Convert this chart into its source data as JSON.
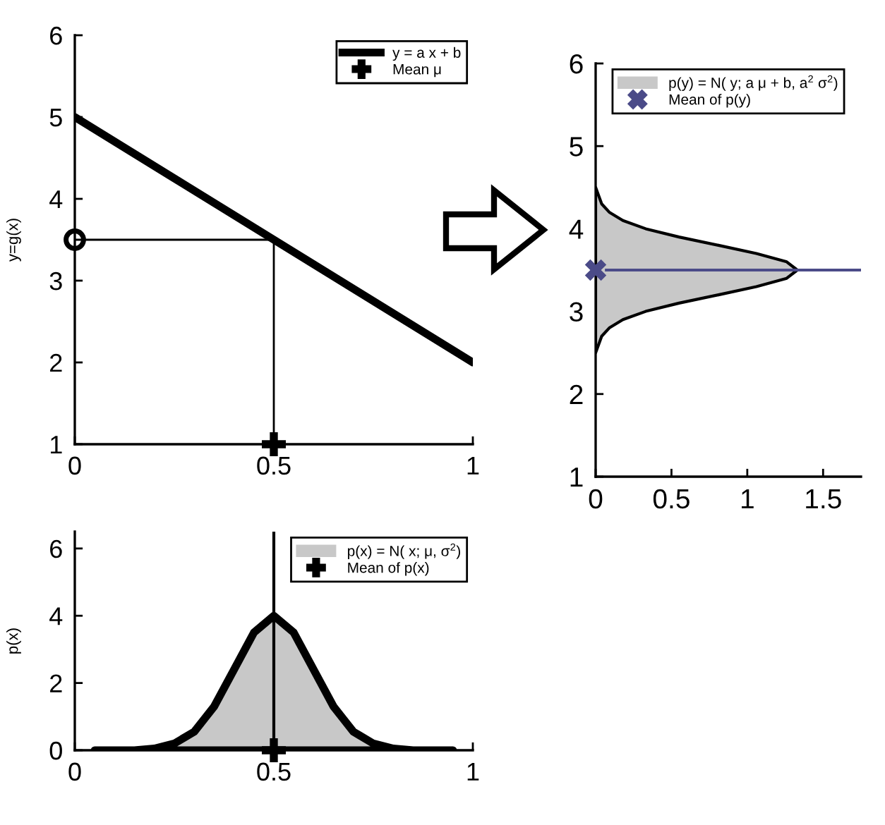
{
  "chart_data": [
    {
      "type": "line",
      "ylabel": "y=g(x)",
      "xlim": [
        0,
        1
      ],
      "ylim": [
        1,
        6
      ],
      "xticks": [
        0,
        0.5,
        1
      ],
      "yticks": [
        1,
        2,
        3,
        4,
        5,
        6
      ],
      "grid": false,
      "legend": "top right",
      "series": [
        {
          "name": "y = a x + b",
          "color": "#000000",
          "x": [
            0,
            1
          ],
          "values": [
            5,
            2
          ]
        },
        {
          "type": "line",
          "color": "#000000",
          "x": [
            0,
            0.5,
            0.5
          ],
          "values": [
            3.5,
            3.5,
            1
          ]
        },
        {
          "type": "scatter",
          "name": "Mean μ",
          "color": "#000000",
          "marker": "plus",
          "x": [
            0.5
          ],
          "values": [
            1
          ]
        },
        {
          "type": "scatter",
          "color": "#000000",
          "marker": "circle",
          "x": [
            0
          ],
          "values": [
            3.5
          ]
        }
      ]
    },
    {
      "type": "area",
      "orientation": "horizontal",
      "xlim": [
        0,
        1.75
      ],
      "ylim": [
        1,
        6
      ],
      "xticks": [
        0,
        0.5,
        1,
        1.5
      ],
      "yticks": [
        1,
        2,
        3,
        4,
        5,
        6
      ],
      "grid": false,
      "legend": "top",
      "ref_lines": [
        {
          "axis": "y",
          "value": 3.5,
          "color": "#4b4b88"
        }
      ],
      "series": [
        {
          "name": "p(y) = N( y; a μ + b, a$^{2}$ σ$^{2}$)",
          "color": "#c8c8c8",
          "x": [
            2.5,
            2.6,
            2.7,
            2.8,
            2.9,
            3.0,
            3.1,
            3.2,
            3.3,
            3.4,
            3.5,
            3.6,
            3.7,
            3.8,
            3.9,
            4.0,
            4.1,
            4.2,
            4.3,
            4.4,
            4.5
          ],
          "values": [
            0,
            0.02,
            0.04,
            0.09,
            0.18,
            0.33,
            0.55,
            0.81,
            1.06,
            1.26,
            1.33,
            1.26,
            1.06,
            0.81,
            0.55,
            0.33,
            0.18,
            0.09,
            0.04,
            0.02,
            0
          ]
        },
        {
          "type": "scatter",
          "name": "Mean of p(y)",
          "color": "#4b4b88",
          "marker": "cross",
          "x": [
            3.5
          ],
          "values": [
            0
          ]
        }
      ]
    },
    {
      "type": "area",
      "ylabel": "p(x)",
      "xlim": [
        0,
        1
      ],
      "ylim": [
        0,
        6.5
      ],
      "xticks": [
        0,
        0.5,
        1
      ],
      "yticks": [
        0,
        2,
        4,
        6
      ],
      "grid": false,
      "legend": "top right",
      "ref_lines": [
        {
          "axis": "x",
          "value": 0.5,
          "color": "#000000"
        }
      ],
      "series": [
        {
          "name": "p(x) = N( x; μ, σ$^{2}$)",
          "color": "#c8c8c8",
          "x": [
            0.05,
            0.1,
            0.15,
            0.2,
            0.25,
            0.3,
            0.35,
            0.4,
            0.45,
            0.5,
            0.55,
            0.6,
            0.65,
            0.7,
            0.75,
            0.8,
            0.85,
            0.9,
            0.95
          ],
          "values": [
            0,
            0,
            0,
            0.05,
            0.2,
            0.55,
            1.3,
            2.4,
            3.5,
            4,
            3.5,
            2.4,
            1.3,
            0.55,
            0.2,
            0.05,
            0,
            0,
            0
          ]
        },
        {
          "type": "scatter",
          "name": "Mean of p(x)",
          "color": "#000000",
          "marker": "plus",
          "x": [
            0.5
          ],
          "values": [
            0
          ]
        }
      ]
    }
  ]
}
